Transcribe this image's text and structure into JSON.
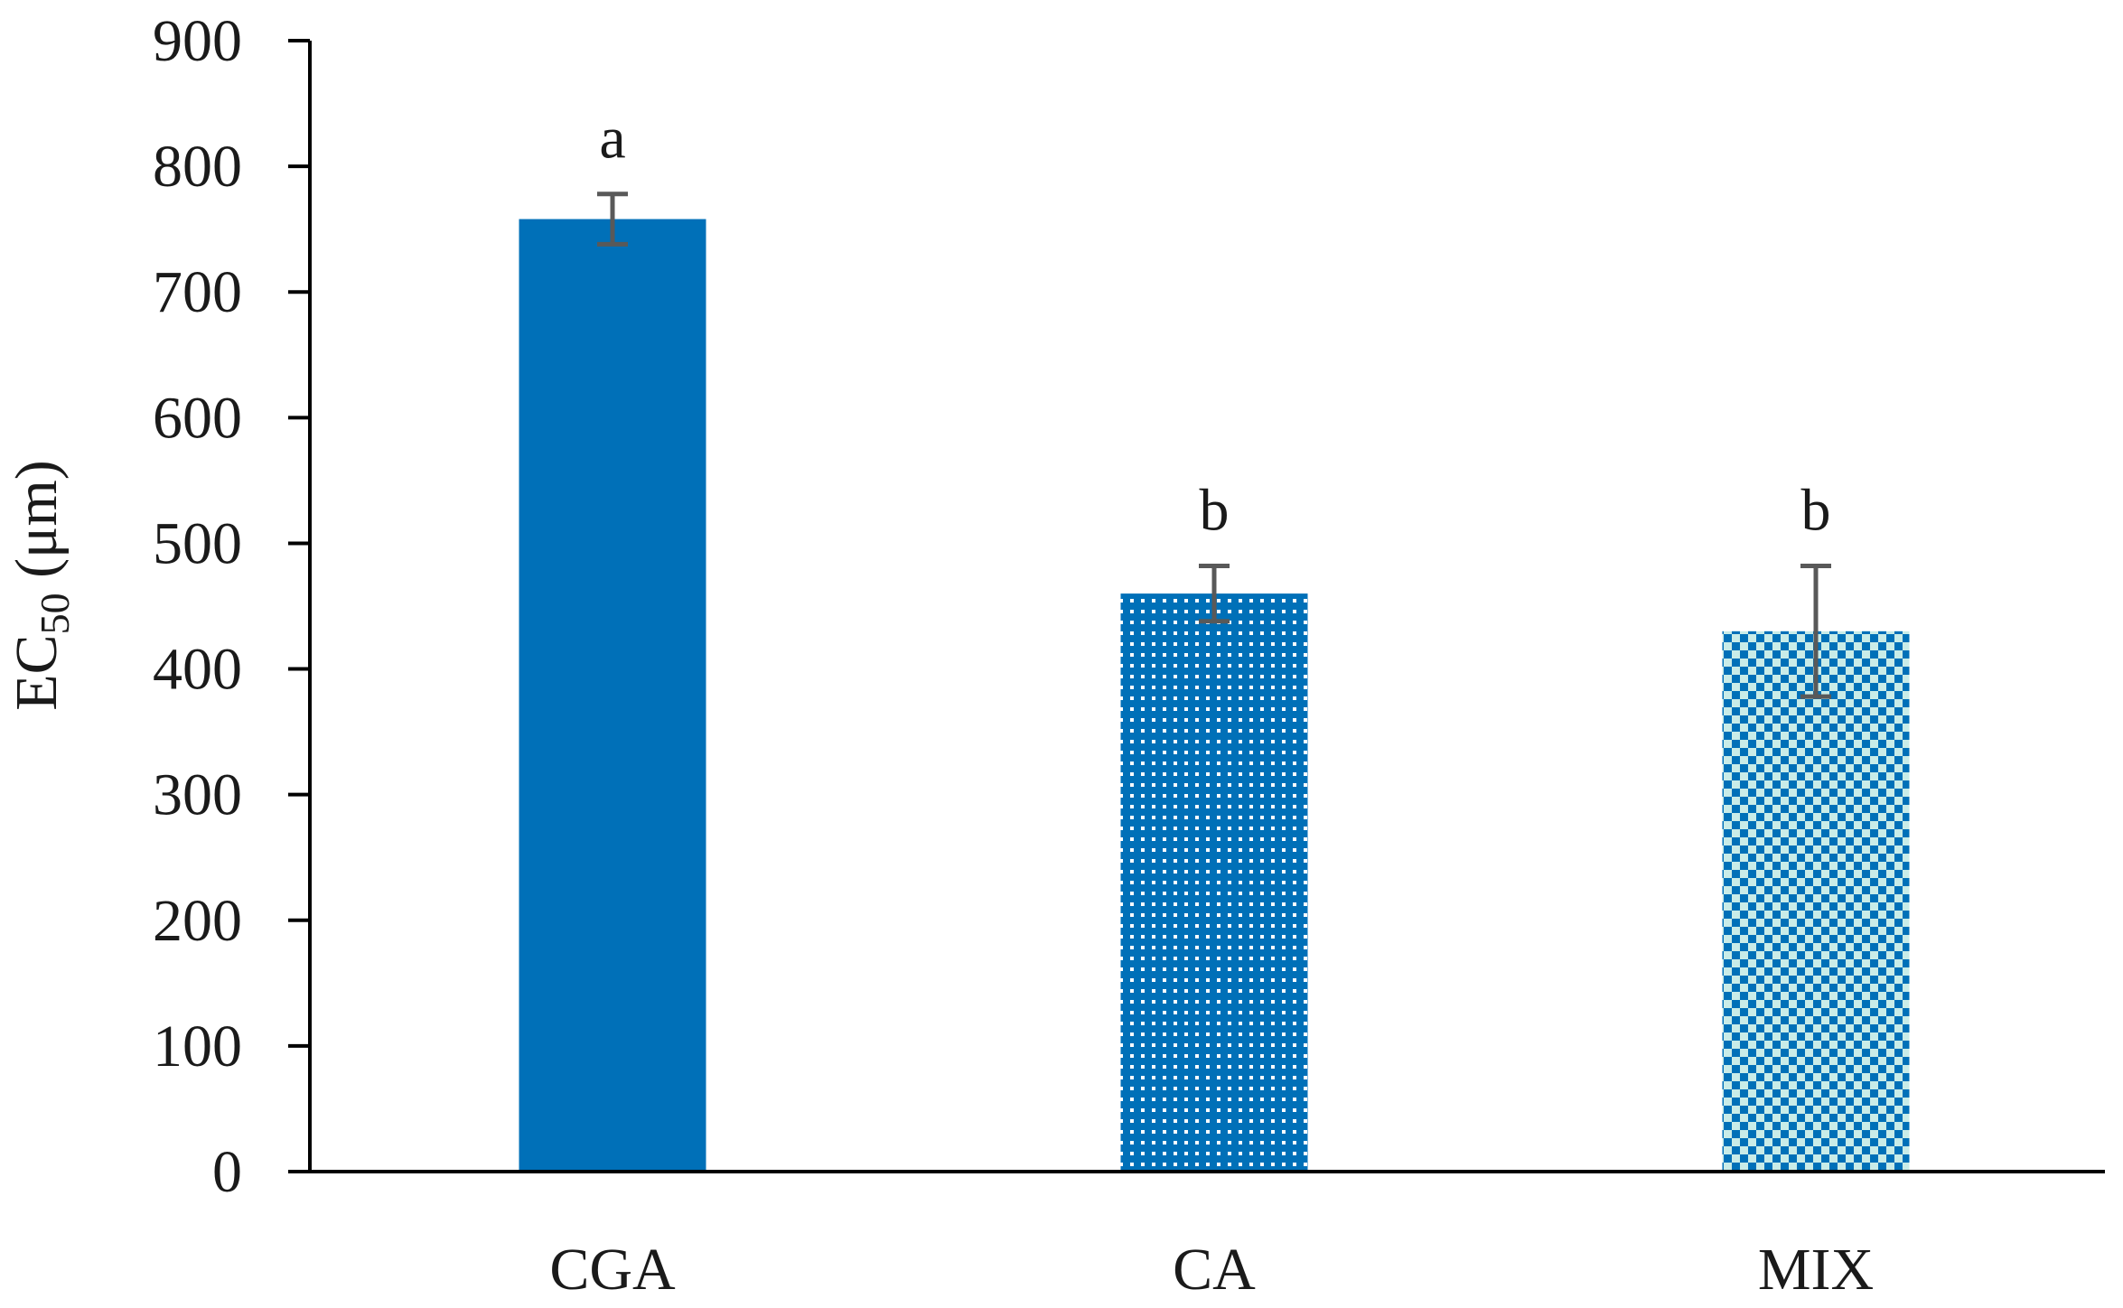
{
  "chart_data": {
    "type": "bar",
    "categories": [
      "CGA",
      "CA",
      "MIX"
    ],
    "values": [
      758,
      460,
      430
    ],
    "error": [
      20,
      22,
      52
    ],
    "significance": [
      "a",
      "b",
      "b"
    ],
    "ylabel": {
      "main": "EC",
      "subscript": "50",
      "unit": " (μm)"
    },
    "xlabel": "",
    "ylim": [
      0,
      900
    ],
    "yticks": [
      0,
      100,
      200,
      300,
      400,
      500,
      600,
      700,
      800,
      900
    ],
    "grid": false,
    "legend": "none",
    "bar_fills": [
      "solid",
      "small-dots",
      "checkerboard"
    ],
    "colors": {
      "bar": "#0070b8",
      "pattern_light": "#c9ece8",
      "pattern_dot": "#ffffff",
      "error_bar": "#595959",
      "axis": "#000000"
    }
  }
}
